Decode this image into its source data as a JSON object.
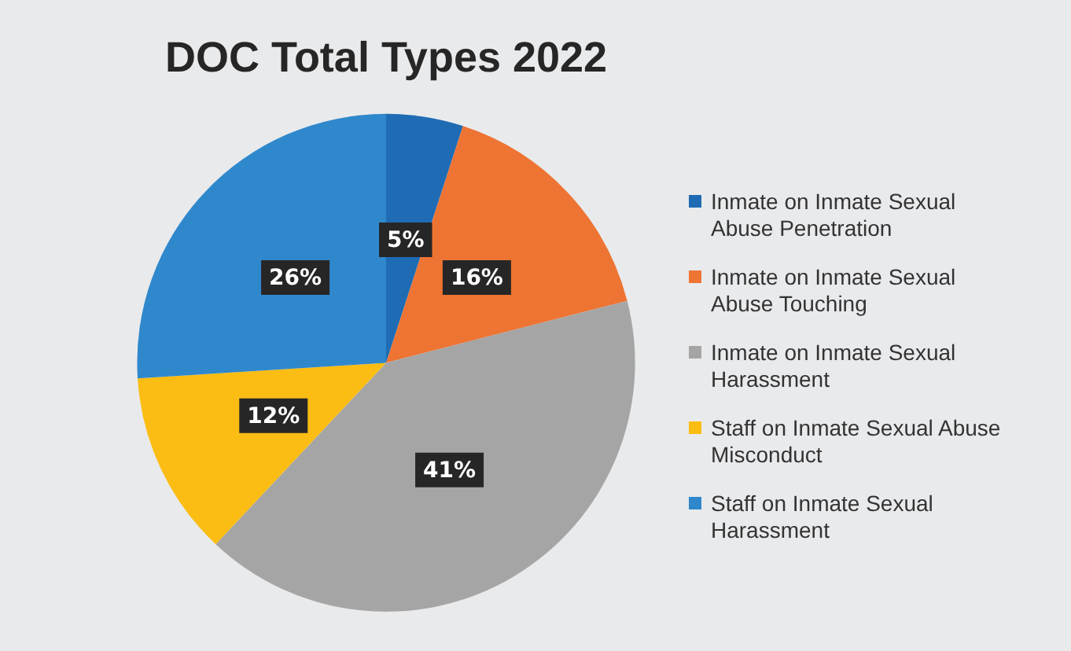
{
  "chart_data": {
    "type": "pie",
    "title": "DOC Total Types 2022",
    "categories": [
      "Inmate on Inmate Sexual Abuse Penetration",
      "Inmate on Inmate Sexual Abuse Touching",
      "Inmate on Inmate Sexual Harassment",
      "Staff on Inmate Sexual Abuse Misconduct",
      "Staff on Inmate Sexual Harassment"
    ],
    "values": [
      5,
      16,
      41,
      12,
      26
    ],
    "colors": [
      "#1f6cb4",
      "#ee7433",
      "#a5a5a5",
      "#fbbd14",
      "#2f88cc"
    ],
    "value_labels": [
      "5%",
      "16%",
      "41%",
      "12%",
      "26%"
    ],
    "legend": "right"
  }
}
